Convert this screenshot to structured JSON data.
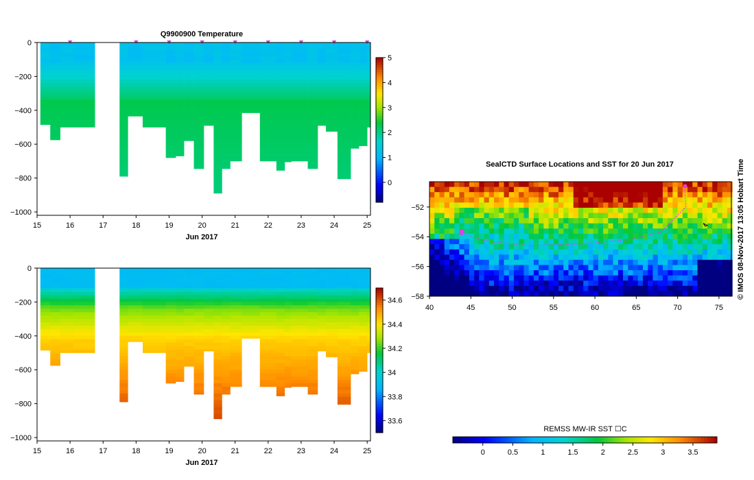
{
  "charts": {
    "temperature": {
      "title": "Q9900900  Temperature",
      "xlabel": "Jun 2017",
      "x_ticks": [
        "15",
        "16",
        "17",
        "18",
        "19",
        "20",
        "21",
        "22",
        "23",
        "24",
        "25"
      ],
      "y_ticks": [
        "0",
        "−200",
        "−400",
        "−600",
        "−800",
        "−1000"
      ],
      "colorbar_ticks": [
        "5",
        "4",
        "3",
        "2",
        "1",
        "0"
      ]
    },
    "salinity": {
      "xlabel": "Jun 2017",
      "x_ticks": [
        "15",
        "16",
        "17",
        "18",
        "19",
        "20",
        "21",
        "22",
        "23",
        "24",
        "25"
      ],
      "y_ticks": [
        "0",
        "−200",
        "−400",
        "−600",
        "−800",
        "−1000"
      ],
      "colorbar_ticks": [
        "34.6",
        "34.4",
        "34.2",
        "34",
        "33.8",
        "33.6"
      ]
    },
    "map": {
      "title": "SealCTD Surface Locations and SST for 20 Jun 2017",
      "x_ticks": [
        "40",
        "45",
        "50",
        "55",
        "60",
        "65",
        "70",
        "75"
      ],
      "y_ticks": [
        "−52",
        "−54",
        "−56",
        "−58"
      ],
      "colorbar_label": "REMSS MW-IR SST ☐C",
      "colorbar_ticks": [
        "0",
        "0.5",
        "1",
        "1.5",
        "2",
        "2.5",
        "3",
        "3.5"
      ]
    }
  },
  "side_text": "©  IMOS 08-Nov-2017 13:05 Hobart Time",
  "chart_data": [
    {
      "type": "heatmap",
      "title": "Q9900900  Temperature",
      "xlabel": "Jun 2017",
      "ylabel": "",
      "xlim": [
        15,
        25.1
      ],
      "ylim": [
        -1020,
        0
      ],
      "color_range": [
        -0.8,
        5
      ],
      "profiles": [
        {
          "t0": 15.1,
          "t1": 15.4,
          "depth": -485,
          "surface": 1.2
        },
        {
          "t0": 15.4,
          "t1": 15.7,
          "depth": -575,
          "surface": 1.1
        },
        {
          "t0": 15.7,
          "t1": 16.1,
          "depth": -500,
          "surface": 1.2
        },
        {
          "t0": 16.1,
          "t1": 16.75,
          "depth": -500,
          "surface": 1.1
        },
        {
          "t0": 17.5,
          "t1": 17.75,
          "depth": -790,
          "surface": 1.2
        },
        {
          "t0": 17.75,
          "t1": 18.2,
          "depth": -435,
          "surface": 1.1
        },
        {
          "t0": 18.2,
          "t1": 18.9,
          "depth": -500,
          "surface": 1.2
        },
        {
          "t0": 18.9,
          "t1": 19.2,
          "depth": -680,
          "surface": 1.1
        },
        {
          "t0": 19.2,
          "t1": 19.45,
          "depth": -670,
          "surface": 1.2
        },
        {
          "t0": 19.45,
          "t1": 19.75,
          "depth": -580,
          "surface": 1.1
        },
        {
          "t0": 19.75,
          "t1": 20.05,
          "depth": -745,
          "surface": 1.2
        },
        {
          "t0": 20.05,
          "t1": 20.35,
          "depth": -490,
          "surface": 1.1
        },
        {
          "t0": 20.35,
          "t1": 20.6,
          "depth": -890,
          "surface": 1.2
        },
        {
          "t0": 20.6,
          "t1": 20.85,
          "depth": -745,
          "surface": 1.1
        },
        {
          "t0": 20.85,
          "t1": 21.2,
          "depth": -700,
          "surface": 1.2
        },
        {
          "t0": 21.2,
          "t1": 21.75,
          "depth": -415,
          "surface": 1.1
        },
        {
          "t0": 21.75,
          "t1": 22.25,
          "depth": -700,
          "surface": 1.2
        },
        {
          "t0": 22.25,
          "t1": 22.5,
          "depth": -755,
          "surface": 1.1
        },
        {
          "t0": 22.5,
          "t1": 22.7,
          "depth": -705,
          "surface": 1.2
        },
        {
          "t0": 22.7,
          "t1": 23.2,
          "depth": -700,
          "surface": 1.1
        },
        {
          "t0": 23.2,
          "t1": 23.5,
          "depth": -745,
          "surface": 1.2
        },
        {
          "t0": 23.5,
          "t1": 23.75,
          "depth": -490,
          "surface": 1.1
        },
        {
          "t0": 23.75,
          "t1": 24.1,
          "depth": -525,
          "surface": 1.2
        },
        {
          "t0": 24.1,
          "t1": 24.5,
          "depth": -805,
          "surface": 1.1
        },
        {
          "t0": 24.5,
          "t1": 24.75,
          "depth": -625,
          "surface": 1.2
        },
        {
          "t0": 24.75,
          "t1": 25.0,
          "depth": -610,
          "surface": 1.1
        },
        {
          "t0": 25.0,
          "t1": 25.1,
          "depth": -500,
          "surface": 1.2
        }
      ]
    },
    {
      "type": "heatmap",
      "title": "",
      "xlabel": "Jun 2017",
      "ylabel": "",
      "xlim": [
        15,
        25.1
      ],
      "ylim": [
        -1020,
        0
      ],
      "color_range": [
        33.5,
        34.7
      ],
      "surface_value": 33.9,
      "deep_value": 34.62
    },
    {
      "type": "heatmap",
      "title": "SealCTD Surface Locations and SST for 20 Jun 2017",
      "xlabel": "",
      "ylabel": "",
      "xlim": [
        40,
        76.5
      ],
      "ylim": [
        -58,
        -50.3
      ],
      "color_range": [
        -0.5,
        3.9
      ],
      "colorbar_label": "REMSS MW-IR SST ☐C"
    }
  ]
}
